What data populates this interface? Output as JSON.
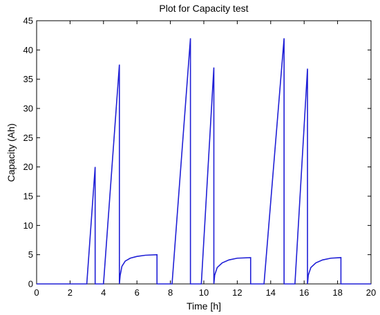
{
  "chart_data": {
    "type": "line",
    "title": "Plot for Capacity test",
    "xlabel": "Time [h]",
    "ylabel": "Capacity (Ah)",
    "xlim": [
      0,
      20
    ],
    "ylim": [
      0,
      45
    ],
    "xticks": [
      0,
      2,
      4,
      6,
      8,
      10,
      12,
      14,
      16,
      18,
      20
    ],
    "yticks": [
      0,
      5,
      10,
      15,
      20,
      25,
      30,
      35,
      40,
      45
    ],
    "grid": false,
    "legend": "none",
    "line_color": "#1f1fd6",
    "series": [
      {
        "x": [
          0,
          3.0,
          3.5,
          3.5,
          4.0,
          4.95,
          4.95,
          5.0,
          5.1,
          5.3,
          5.6,
          6.0,
          6.5,
          7.2,
          7.2,
          8.1,
          9.2,
          9.2,
          9.85,
          10.6,
          10.6,
          10.65,
          10.8,
          11.1,
          11.5,
          12.0,
          12.8,
          12.8,
          13.6,
          14.8,
          14.8,
          15.45,
          16.2,
          16.2,
          16.25,
          16.4,
          16.7,
          17.1,
          17.6,
          18.2,
          18.2,
          20.0
        ],
        "y": [
          0,
          0,
          20,
          0,
          0,
          37.5,
          0,
          1.5,
          3.0,
          3.9,
          4.4,
          4.7,
          4.9,
          5.0,
          0,
          0,
          42,
          0,
          0,
          37,
          0,
          1.5,
          2.8,
          3.6,
          4.1,
          4.4,
          4.5,
          0,
          0,
          42,
          0,
          0,
          36.8,
          0,
          1.5,
          2.8,
          3.6,
          4.1,
          4.4,
          4.5,
          0,
          0
        ]
      }
    ]
  }
}
